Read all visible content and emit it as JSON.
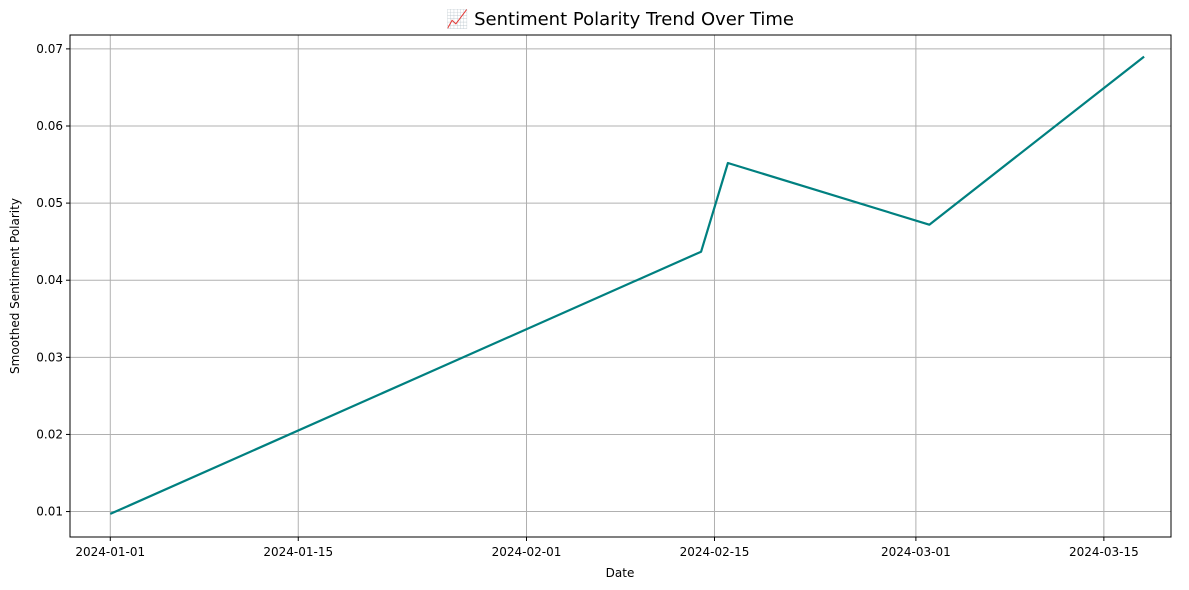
{
  "chart_data": {
    "type": "line",
    "title": "📈 Sentiment Polarity Trend Over Time",
    "xlabel": "Date",
    "ylabel": "Smoothed Sentiment Polarity",
    "x_type": "date",
    "xlim": [
      "2023-12-29",
      "2024-03-20"
    ],
    "ylim": [
      0.0067,
      0.0718
    ],
    "x_ticks": [
      "2024-01-01",
      "2024-01-15",
      "2024-02-01",
      "2024-02-15",
      "2024-03-01",
      "2024-03-15"
    ],
    "y_ticks": [
      0.01,
      0.02,
      0.03,
      0.04,
      0.05,
      0.06,
      0.07
    ],
    "y_tick_labels": [
      "0.01",
      "0.02",
      "0.03",
      "0.04",
      "0.05",
      "0.06",
      "0.07"
    ],
    "grid": true,
    "series": [
      {
        "color": "#008080",
        "points": [
          {
            "x": "2024-01-01",
            "y": 0.0097
          },
          {
            "x": "2024-02-14",
            "y": 0.0437
          },
          {
            "x": "2024-02-16",
            "y": 0.0552
          },
          {
            "x": "2024-03-02",
            "y": 0.0472
          },
          {
            "x": "2024-03-18",
            "y": 0.069
          }
        ]
      }
    ]
  }
}
